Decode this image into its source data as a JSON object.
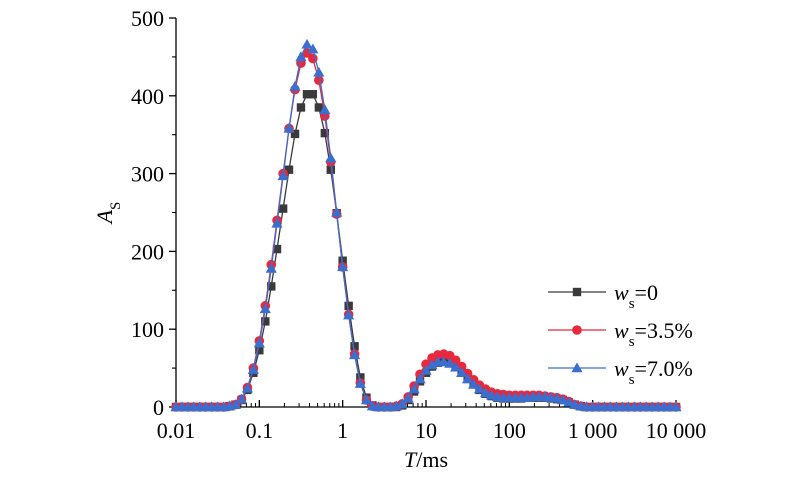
{
  "chart_data": {
    "type": "line",
    "x_scale": "log",
    "xlim": [
      0.01,
      10000
    ],
    "ylim": [
      0,
      500
    ],
    "xlabel": {
      "italic": "T",
      "rest": "/ms"
    },
    "ylabel": {
      "italic": "A",
      "sub": "S"
    },
    "x_tick_values": [
      0.01,
      0.1,
      1,
      10,
      100,
      1000,
      10000
    ],
    "x_tick_labels": [
      "0.01",
      "0.1",
      "1",
      "10",
      "100",
      "1 000",
      "10 000"
    ],
    "y_tick_values": [
      0,
      100,
      200,
      300,
      400,
      500
    ],
    "y_tick_labels": [
      "0",
      "100",
      "200",
      "300",
      "400",
      "500"
    ],
    "grid": false,
    "legend_position": "right",
    "x": [
      0.01,
      0.0118,
      0.0139,
      0.0163,
      0.0193,
      0.0227,
      0.0268,
      0.0316,
      0.0373,
      0.0439,
      0.0518,
      0.0611,
      0.072,
      0.0848,
      0.1,
      0.118,
      0.139,
      0.163,
      0.193,
      0.227,
      0.268,
      0.316,
      0.373,
      0.439,
      0.518,
      0.611,
      0.72,
      0.848,
      1,
      1.18,
      1.39,
      1.63,
      1.93,
      2.27,
      2.68,
      3.16,
      3.73,
      4.39,
      5.18,
      6.11,
      7.2,
      8.48,
      10,
      11.8,
      13.9,
      16.3,
      19.3,
      22.7,
      26.8,
      31.6,
      37.3,
      43.9,
      51.8,
      61.1,
      72,
      84.8,
      100,
      118,
      139,
      163,
      193,
      227,
      268,
      316,
      373,
      439,
      518,
      611,
      720,
      848,
      1000,
      1180,
      1390,
      1630,
      1930,
      2270,
      2680,
      3160,
      3730,
      4390,
      5180,
      6110,
      7200,
      8480,
      10000
    ],
    "series": [
      {
        "name": "ws=0",
        "legend": {
          "italic": "w",
          "sub": "s",
          "rest": "=0"
        },
        "color": "#3a3a3a",
        "marker": "square",
        "values": [
          0,
          0,
          0,
          0,
          0,
          0,
          0,
          0,
          0,
          1,
          3,
          9,
          22,
          44,
          73,
          110,
          155,
          203,
          255,
          305,
          351,
          385,
          402,
          402,
          385,
          352,
          305,
          249,
          188,
          130,
          78,
          38,
          12,
          2,
          0,
          0,
          0,
          0,
          2,
          9,
          20,
          33,
          44,
          52,
          57,
          58,
          56,
          51,
          44,
          36,
          29,
          22,
          17,
          14,
          12,
          11,
          11,
          11,
          11,
          12,
          12,
          12,
          12,
          11,
          10,
          9,
          6,
          3,
          1,
          0,
          0,
          0,
          0,
          0,
          0,
          0,
          0,
          0,
          0,
          0,
          0,
          0,
          0,
          0,
          0
        ]
      },
      {
        "name": "ws=3.5%",
        "legend": {
          "italic": "w",
          "sub": "s",
          "rest": "=3.5%"
        },
        "color": "#e8283c",
        "marker": "circle",
        "values": [
          0,
          0,
          0,
          0,
          0,
          0,
          0,
          0,
          0,
          1,
          3,
          10,
          25,
          50,
          85,
          130,
          183,
          240,
          300,
          358,
          408,
          442,
          455,
          448,
          420,
          374,
          315,
          248,
          180,
          119,
          68,
          31,
          9,
          1,
          0,
          0,
          0,
          1,
          4,
          13,
          27,
          42,
          55,
          63,
          67,
          68,
          66,
          60,
          52,
          43,
          35,
          28,
          23,
          19,
          17,
          16,
          15,
          15,
          15,
          15,
          15,
          15,
          14,
          13,
          12,
          10,
          7,
          3,
          1,
          0,
          0,
          0,
          0,
          0,
          0,
          0,
          0,
          0,
          0,
          0,
          0,
          0,
          0,
          0,
          0
        ]
      },
      {
        "name": "ws=7.0%",
        "legend": {
          "italic": "w",
          "sub": "s",
          "rest": "=7.0%"
        },
        "color": "#3a6fd0",
        "marker": "triangle",
        "values": [
          0,
          0,
          0,
          0,
          0,
          0,
          0,
          0,
          0,
          1,
          3,
          10,
          24,
          48,
          82,
          126,
          178,
          236,
          297,
          358,
          412,
          450,
          466,
          460,
          430,
          382,
          320,
          250,
          180,
          118,
          67,
          30,
          9,
          1,
          0,
          0,
          0,
          1,
          4,
          11,
          23,
          36,
          47,
          54,
          58,
          58,
          56,
          51,
          44,
          36,
          29,
          23,
          18,
          15,
          13,
          12,
          12,
          12,
          12,
          12,
          13,
          13,
          13,
          12,
          11,
          9,
          6,
          3,
          1,
          0,
          0,
          0,
          0,
          0,
          0,
          0,
          0,
          0,
          0,
          0,
          0,
          0,
          0,
          0,
          0
        ]
      }
    ]
  }
}
